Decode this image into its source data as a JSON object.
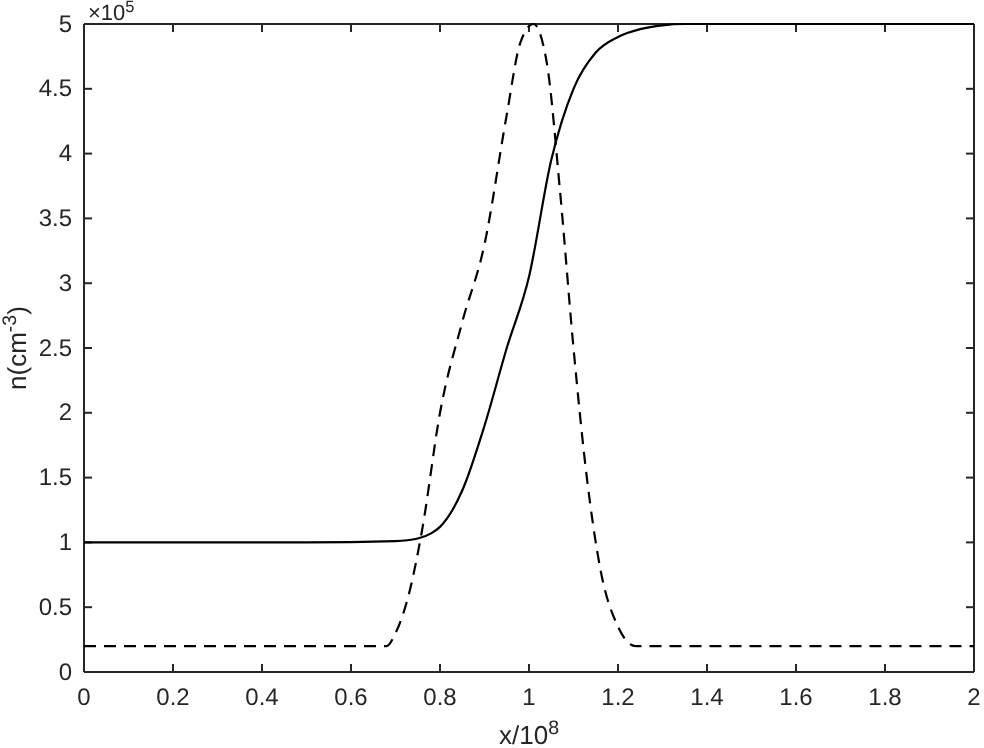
{
  "chart_data": {
    "type": "line",
    "xlabel": "x/10$^{8}$",
    "ylabel": "n(cm$^{-3}$)",
    "annotations": [
      "×10$^{5}$"
    ],
    "xlim": [
      0,
      2
    ],
    "xticks": [
      0,
      0.2,
      0.4,
      0.6,
      0.8,
      1,
      1.2,
      1.4,
      1.6,
      1.8,
      2
    ],
    "ylim": [
      0,
      5
    ],
    "yticks": [
      0,
      0.5,
      1,
      1.5,
      2,
      2.5,
      3,
      3.5,
      4,
      4.5,
      5
    ],
    "series": [
      {
        "color": "#000000",
        "line_style": "solid",
        "x": [
          0,
          0.5,
          0.7,
          0.75,
          0.78,
          0.8,
          0.85,
          0.9,
          0.95,
          1,
          1.05,
          1.1,
          1.15,
          1.2,
          1.25,
          1.3,
          1.35,
          1.4,
          2
        ],
        "values": [
          1,
          1,
          1.01,
          1.03,
          1.07,
          1.12,
          1.4,
          1.9,
          2.5,
          3.05,
          3.95,
          4.5,
          4.78,
          4.9,
          4.96,
          4.99,
          5,
          5,
          5
        ]
      },
      {
        "color": "#000000",
        "line_style": "dashed",
        "x": [
          0,
          0.68,
          0.7,
          0.73,
          0.76,
          0.8,
          0.85,
          0.9,
          0.95,
          0.98,
          1.01,
          1.04,
          1.07,
          1.1,
          1.13,
          1.16,
          1.2,
          1.24,
          2
        ],
        "values": [
          0.2,
          0.2,
          0.3,
          0.6,
          1.1,
          2.0,
          2.7,
          3.3,
          4.3,
          4.85,
          5,
          4.7,
          3.7,
          2.5,
          1.5,
          0.8,
          0.35,
          0.2,
          0.2
        ]
      }
    ]
  }
}
